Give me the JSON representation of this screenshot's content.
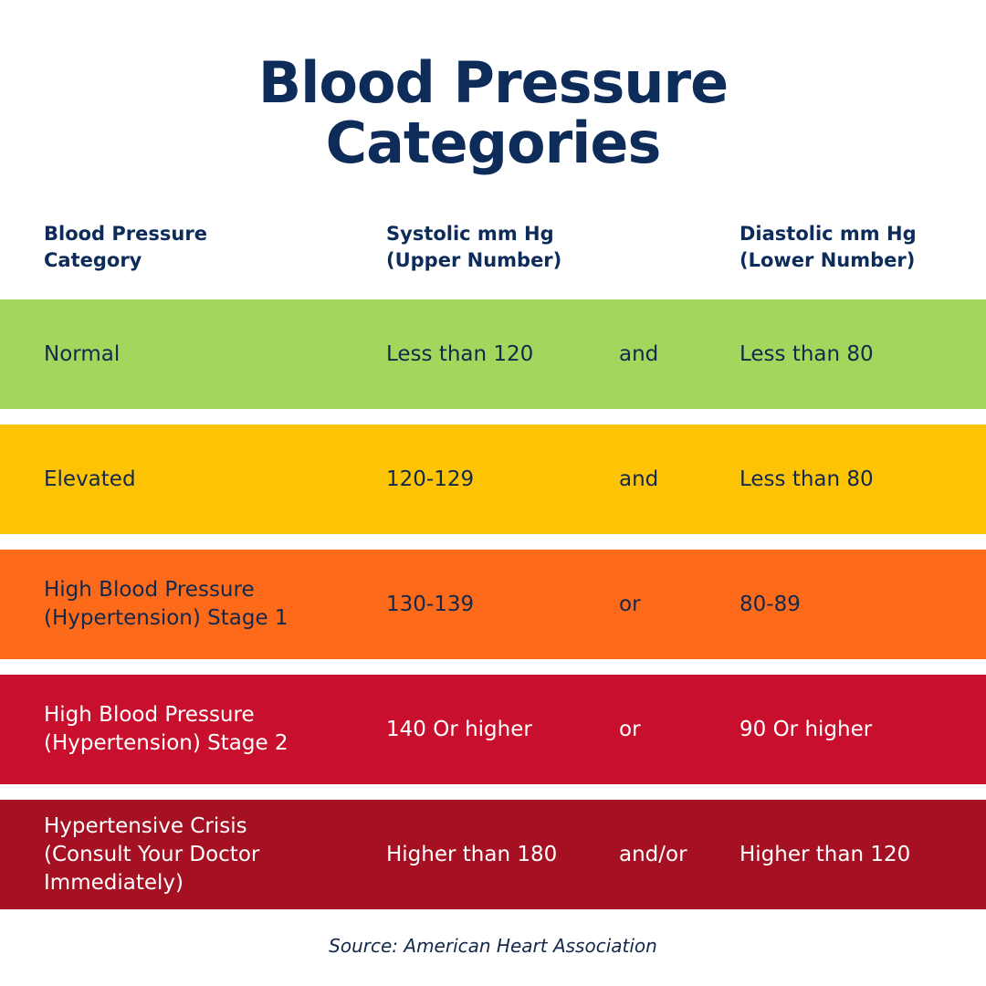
{
  "title": {
    "line1": "Blood Pressure",
    "line2": "Categories"
  },
  "header": {
    "category": [
      "Blood Pressure",
      "Category"
    ],
    "systolic": [
      "Systolic mm Hg",
      "(Upper Number)"
    ],
    "diastolic": [
      "Diastolic mm Hg",
      "(Lower Number)"
    ]
  },
  "rows": [
    {
      "color": "#a3d65c",
      "text_color": "#14284b",
      "category": [
        "Normal"
      ],
      "systolic": "Less than 120",
      "connector": "and",
      "diastolic": "Less than 80"
    },
    {
      "color": "#fcc404",
      "text_color": "#14284b",
      "category": [
        "Elevated"
      ],
      "systolic": "120-129",
      "connector": "and",
      "diastolic": "Less than 80"
    },
    {
      "color": "#fd6a19",
      "text_color": "#14284b",
      "category": [
        "High Blood Pressure",
        "(Hypertension) Stage 1"
      ],
      "systolic": "130-139",
      "connector": "or",
      "diastolic": "80-89"
    },
    {
      "color": "#c8102e",
      "text_color": "#ffffff",
      "category": [
        "High Blood Pressure",
        "(Hypertension) Stage 2"
      ],
      "systolic": "140 Or higher",
      "connector": "or",
      "diastolic": "90 Or higher"
    },
    {
      "color": "#a51022",
      "text_color": "#ffffff",
      "category": [
        "Hypertensive Crisis",
        "(Consult Your Doctor",
        "Immediately)"
      ],
      "systolic": "Higher than 180",
      "connector": "and/or",
      "diastolic": "Higher than 120"
    }
  ],
  "source": "Source: American Heart Association"
}
